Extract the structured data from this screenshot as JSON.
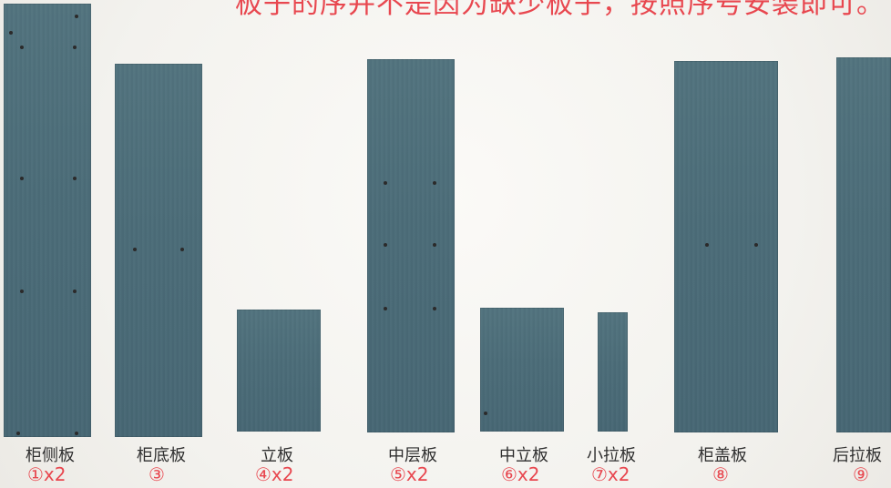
{
  "notice": "板子的序并不是因为缺少板子，按照序号安装即可。",
  "colors": {
    "panel": "#4b6c78",
    "notice": "#e8474f",
    "quantity": "#e8474f",
    "label": "#2f2f2f"
  },
  "parts": [
    {
      "name": "柜侧板",
      "qty": "①x2"
    },
    {
      "name": "柜底板",
      "qty": "③"
    },
    {
      "name": "立板",
      "qty": "④x2"
    },
    {
      "name": "中层板",
      "qty": "⑤x2"
    },
    {
      "name": "中立板",
      "qty": "⑥x2"
    },
    {
      "name": "小拉板",
      "qty": "⑦x2"
    },
    {
      "name": "柜盖板",
      "qty": "⑧"
    },
    {
      "name": "后拉板",
      "qty": "⑨"
    }
  ]
}
